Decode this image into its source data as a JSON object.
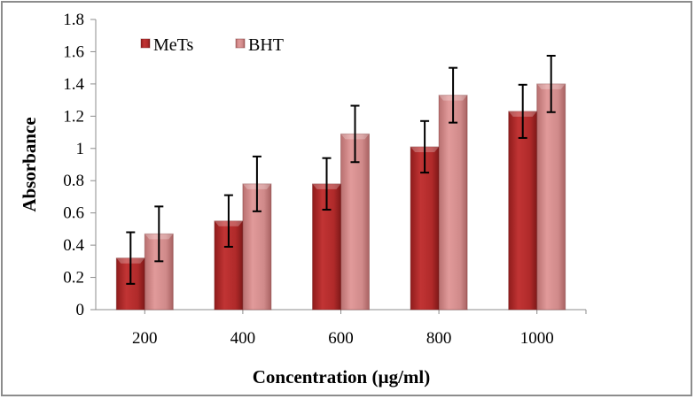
{
  "chart_data": {
    "type": "bar",
    "title": "",
    "xlabel": "Concentration (µg/ml)",
    "ylabel": "Absorbance",
    "categories": [
      "200",
      "400",
      "600",
      "800",
      "1000"
    ],
    "ylim": [
      0,
      1.8
    ],
    "yticks": [
      "0",
      "0.2",
      "0.4",
      "0.6",
      "0.8",
      "1",
      "1.2",
      "1.4",
      "1.6",
      "1.8"
    ],
    "ytick_values": [
      0,
      0.2,
      0.4,
      0.6,
      0.8,
      1.0,
      1.2,
      1.4,
      1.6,
      1.8
    ],
    "grid": false,
    "legend_position": "top-left",
    "series": [
      {
        "name": "MeTs",
        "color": "#b32a2a",
        "values": [
          0.32,
          0.55,
          0.78,
          1.01,
          1.23
        ],
        "error": [
          0.16,
          0.16,
          0.16,
          0.16,
          0.165
        ]
      },
      {
        "name": "BHT",
        "color": "#d48a8a",
        "values": [
          0.47,
          0.78,
          1.09,
          1.33,
          1.4
        ],
        "error": [
          0.17,
          0.17,
          0.175,
          0.17,
          0.175
        ]
      }
    ]
  }
}
